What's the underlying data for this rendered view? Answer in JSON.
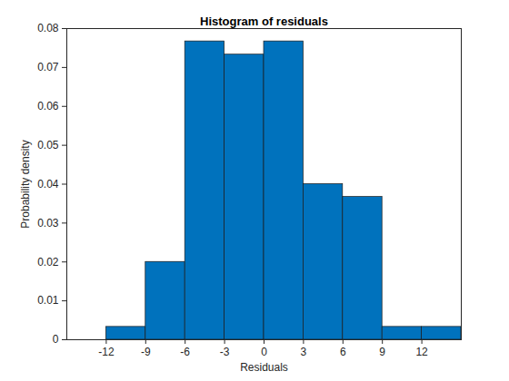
{
  "chart_data": {
    "type": "histogram",
    "title": "Histogram of residuals",
    "x_label": "Residuals",
    "y_label": "Probability density",
    "bins": [
      -12,
      -9,
      -6,
      -3,
      0,
      3,
      6,
      9,
      12,
      15
    ],
    "values": [
      0.0033,
      0.02,
      0.0767,
      0.0733,
      0.0767,
      0.04,
      0.0367,
      0.0033,
      0.0033
    ],
    "color": "#0072bd",
    "xlim": [
      -15,
      15
    ],
    "xticks": [
      -12,
      -9,
      -6,
      -3,
      0,
      3,
      6,
      9,
      12
    ],
    "ylim": [
      0,
      0.08
    ],
    "yticks": [
      0,
      0.01,
      0.02,
      0.03,
      0.04,
      0.05,
      0.06,
      0.07,
      0.08
    ],
    "grid": false
  }
}
